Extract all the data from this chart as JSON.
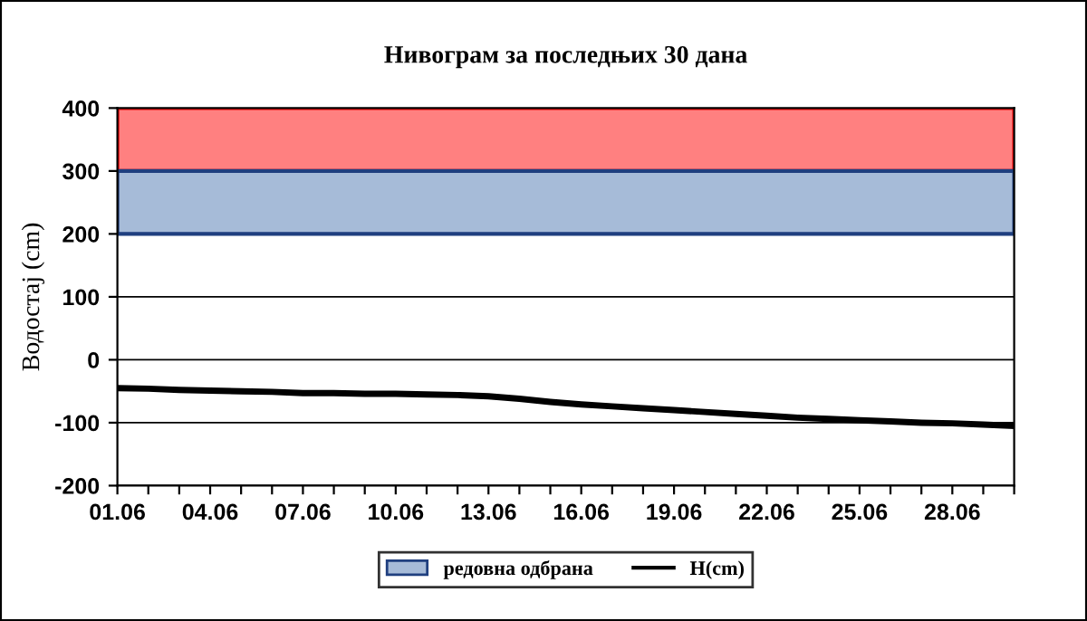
{
  "chart_data": {
    "type": "line",
    "title": "Нивограм за последњих 30 дана",
    "ylabel": "Водостај (cm)",
    "categories": [
      "01.06",
      null,
      null,
      "04.06",
      null,
      null,
      "07.06",
      null,
      null,
      "10.06",
      null,
      null,
      "13.06",
      null,
      null,
      "16.06",
      null,
      null,
      "19.06",
      null,
      null,
      "22.06",
      null,
      null,
      "25.06",
      null,
      null,
      "28.06",
      null,
      null
    ],
    "series": [
      {
        "name": "H(cm)",
        "color": "#000000",
        "values": [
          -45,
          -46,
          -48,
          -49,
          -50,
          -51,
          -53,
          -53,
          -54,
          -54,
          -55,
          -56,
          -58,
          -62,
          -67,
          -71,
          -74,
          -77,
          -80,
          -83,
          -86,
          -89,
          -92,
          -94,
          -96,
          -98,
          -100,
          -101,
          -103,
          -105
        ]
      }
    ],
    "bands": [
      {
        "axis": "y",
        "from": 300,
        "to": 400,
        "label": null,
        "color": "#ff8080"
      },
      {
        "axis": "y",
        "from": 200,
        "to": 300,
        "label": "редовна одбрана",
        "color": "#a6bbd8"
      }
    ],
    "ylim": [
      -200,
      400
    ],
    "yticks": [
      -200,
      -100,
      0,
      100,
      200,
      300,
      400
    ],
    "grid": "y",
    "legend": "bottom",
    "line_style": "solid",
    "marker": "none"
  }
}
